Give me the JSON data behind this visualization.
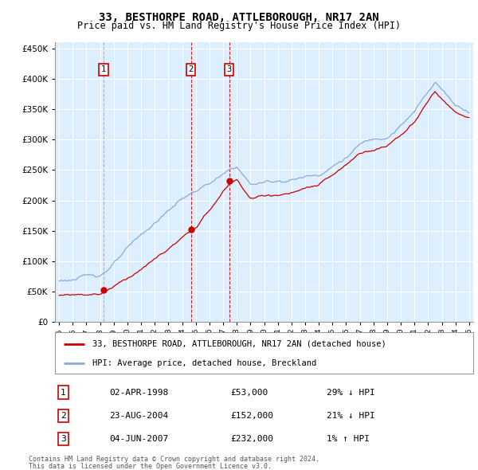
{
  "title": "33, BESTHORPE ROAD, ATTLEBOROUGH, NR17 2AN",
  "subtitle": "Price paid vs. HM Land Registry's House Price Index (HPI)",
  "legend_line1": "33, BESTHORPE ROAD, ATTLEBOROUGH, NR17 2AN (detached house)",
  "legend_line2": "HPI: Average price, detached house, Breckland",
  "footer1": "Contains HM Land Registry data © Crown copyright and database right 2024.",
  "footer2": "This data is licensed under the Open Government Licence v3.0.",
  "sales": [
    {
      "num": 1,
      "date": "02-APR-1998",
      "price": 53000,
      "year": 1998.25,
      "hpi_rel": "29% ↓ HPI",
      "vline_color": "#aaaaaa"
    },
    {
      "num": 2,
      "date": "23-AUG-2004",
      "price": 152000,
      "year": 2004.65,
      "hpi_rel": "21% ↓ HPI",
      "vline_color": "#cc0000"
    },
    {
      "num": 3,
      "date": "04-JUN-2007",
      "price": 232000,
      "year": 2007.45,
      "hpi_rel": "1% ↑ HPI",
      "vline_color": "#cc0000"
    }
  ],
  "hpi_color": "#88aadd",
  "sale_color": "#cc0000",
  "plot_bg": "#ddeeff",
  "ylim": [
    0,
    460000
  ],
  "xlim_start": 1994.7,
  "xlim_end": 2025.3
}
